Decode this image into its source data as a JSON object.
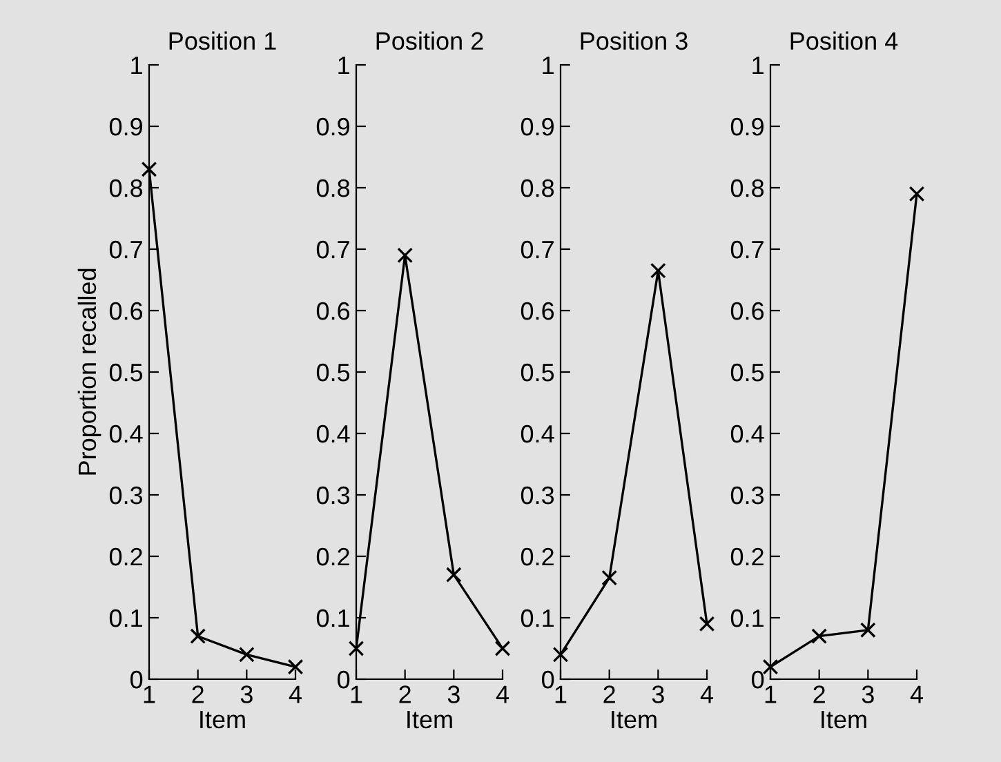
{
  "chart_data": [
    {
      "type": "line",
      "title": "Position 1",
      "xlabel": "Item",
      "ylabel": "Proportion recalled",
      "x": [
        1,
        2,
        3,
        4
      ],
      "values": [
        0.83,
        0.07,
        0.04,
        0.02
      ],
      "color": "#000000",
      "marker": "cross",
      "line_style": "solid",
      "xlim": [
        1,
        4
      ],
      "xticks": [
        1,
        2,
        3,
        4
      ],
      "ylim": [
        0,
        1
      ],
      "yticks": [
        0,
        0.1,
        0.2,
        0.3,
        0.4,
        0.5,
        0.6,
        0.7,
        0.8,
        0.9,
        1
      ],
      "grid": false,
      "legend": false
    },
    {
      "type": "line",
      "title": "Position 2",
      "xlabel": "Item",
      "x": [
        1,
        2,
        3,
        4
      ],
      "values": [
        0.05,
        0.69,
        0.17,
        0.05
      ],
      "color": "#000000",
      "marker": "cross",
      "line_style": "solid",
      "xlim": [
        1,
        4
      ],
      "xticks": [
        1,
        2,
        3,
        4
      ],
      "ylim": [
        0,
        1
      ],
      "yticks": [
        0,
        0.1,
        0.2,
        0.3,
        0.4,
        0.5,
        0.6,
        0.7,
        0.8,
        0.9,
        1
      ],
      "grid": false,
      "legend": false
    },
    {
      "type": "line",
      "title": "Position 3",
      "xlabel": "Item",
      "x": [
        1,
        2,
        3,
        4
      ],
      "values": [
        0.04,
        0.165,
        0.665,
        0.09
      ],
      "color": "#000000",
      "marker": "cross",
      "line_style": "solid",
      "xlim": [
        1,
        4
      ],
      "xticks": [
        1,
        2,
        3,
        4
      ],
      "ylim": [
        0,
        1
      ],
      "yticks": [
        0,
        0.1,
        0.2,
        0.3,
        0.4,
        0.5,
        0.6,
        0.7,
        0.8,
        0.9,
        1
      ],
      "grid": false,
      "legend": false
    },
    {
      "type": "line",
      "title": "Position 4",
      "xlabel": "Item",
      "x": [
        1,
        2,
        3,
        4
      ],
      "values": [
        0.02,
        0.07,
        0.08,
        0.79
      ],
      "color": "#000000",
      "marker": "cross",
      "line_style": "solid",
      "xlim": [
        1,
        4
      ],
      "xticks": [
        1,
        2,
        3,
        4
      ],
      "ylim": [
        0,
        1
      ],
      "yticks": [
        0,
        0.1,
        0.2,
        0.3,
        0.4,
        0.5,
        0.6,
        0.7,
        0.8,
        0.9,
        1
      ],
      "grid": false,
      "legend": false
    }
  ]
}
